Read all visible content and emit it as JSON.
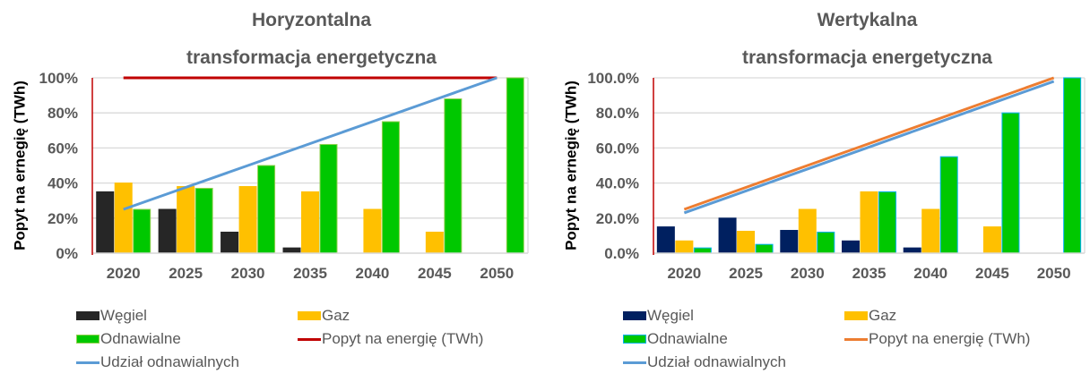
{
  "chart_data": [
    {
      "type": "bar",
      "title": "Horyzontalna\ntransformacja energetyczna",
      "title_lines": [
        "Horyzontalna",
        "transformacja energetyczna"
      ],
      "xlabel": "",
      "ylabel": "Popyt na ernegię (TWh)",
      "ylim": [
        0,
        100
      ],
      "y_ticks": [
        "0%",
        "20%",
        "40%",
        "60%",
        "80%",
        "100%"
      ],
      "grid": true,
      "legend_position": "bottom",
      "categories": [
        "2020",
        "2025",
        "2030",
        "2035",
        "2040",
        "2045",
        "2050"
      ],
      "series": [
        {
          "name": "Węgiel",
          "kind": "bar",
          "color": "#262626",
          "outline": "#262626",
          "values": [
            35,
            25,
            12,
            3,
            0,
            0,
            0
          ]
        },
        {
          "name": "Gaz",
          "kind": "bar",
          "color": "#FFC000",
          "outline": "#FFC000",
          "values": [
            40,
            38,
            38,
            35,
            25,
            12,
            0
          ]
        },
        {
          "name": "Odnawialne",
          "kind": "bar",
          "color": "#00C800",
          "outline": "#92D050",
          "values": [
            25,
            37,
            50,
            62,
            75,
            88,
            100
          ]
        },
        {
          "name": "Popyt na energię (TWh)",
          "kind": "line",
          "color": "#C00000",
          "values": [
            100,
            100,
            100,
            100,
            100,
            100,
            100
          ]
        },
        {
          "name": "Udział odnawialnych",
          "kind": "line",
          "color": "#5B9BD5",
          "values": [
            25,
            37.5,
            50,
            62.5,
            75,
            87.5,
            100
          ]
        }
      ],
      "axis_line_color": "#C00000"
    },
    {
      "type": "bar",
      "title": "Wertykalna\ntransformacja energetyczna",
      "title_lines": [
        "Wertykalna",
        "transformacja energetyczna"
      ],
      "xlabel": "",
      "ylabel": "Popyt na ernegię (TWh)",
      "ylim": [
        0,
        100
      ],
      "y_ticks": [
        "0.0%",
        "20.0%",
        "40.0%",
        "60.0%",
        "80.0%",
        "100.0%"
      ],
      "grid": true,
      "legend_position": "bottom",
      "categories": [
        "2020",
        "2025",
        "2030",
        "2035",
        "2040",
        "2045",
        "2050"
      ],
      "series": [
        {
          "name": "Węgiel",
          "kind": "bar",
          "color": "#002060",
          "outline": "#002060",
          "values": [
            15,
            20,
            13,
            7,
            3,
            0,
            0
          ]
        },
        {
          "name": "Gaz",
          "kind": "bar",
          "color": "#FFC000",
          "outline": "#FFC000",
          "values": [
            7,
            12.5,
            25,
            35,
            25,
            15,
            0
          ]
        },
        {
          "name": "Odnawialne",
          "kind": "bar",
          "color": "#00C800",
          "outline": "#00B0F0",
          "values": [
            3,
            5,
            12,
            35,
            55,
            80,
            100
          ]
        },
        {
          "name": "Popyt na energię (TWh)",
          "kind": "line",
          "color": "#ED7D31",
          "values": [
            25,
            37.5,
            50,
            62.5,
            75,
            87.5,
            100
          ]
        },
        {
          "name": "Udział odnawialnych",
          "kind": "line",
          "color": "#5B9BD5",
          "values": [
            23,
            35.5,
            48,
            60.5,
            73,
            85.5,
            98
          ]
        }
      ],
      "axis_line_color": "#C00000"
    }
  ]
}
